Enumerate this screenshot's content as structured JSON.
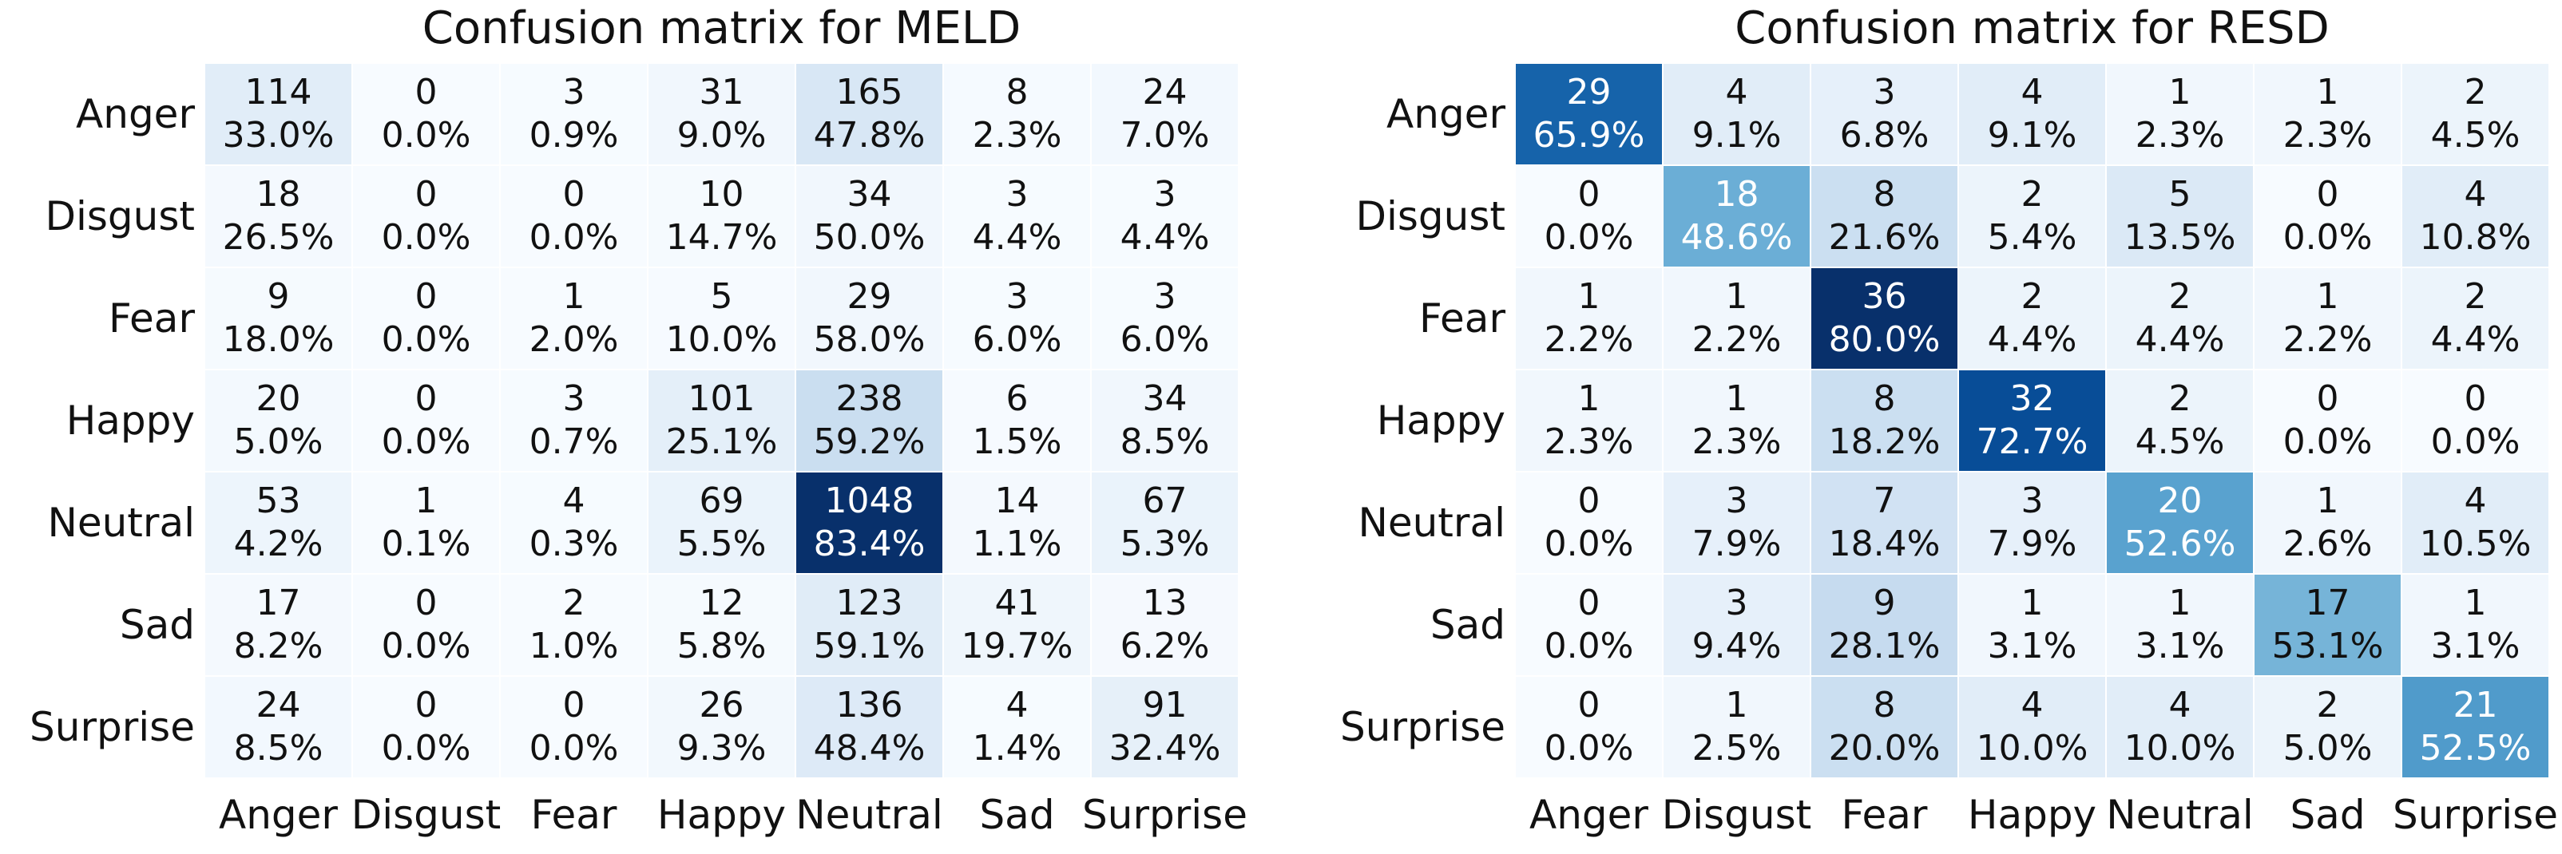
{
  "figure": {
    "background": "#ffffff",
    "colormap_name": "Blues",
    "text_dark": "#111111",
    "text_light": "#ffffff"
  },
  "chart_data": [
    {
      "type": "heatmap",
      "title": "Confusion matrix for MELD",
      "x_labels": [
        "Anger",
        "Disgust",
        "Fear",
        "Happy",
        "Neutral",
        "Sad",
        "Surprise"
      ],
      "y_labels": [
        "Anger",
        "Disgust",
        "Fear",
        "Happy",
        "Neutral",
        "Sad",
        "Surprise"
      ],
      "cell_counts": [
        [
          114,
          0,
          3,
          31,
          165,
          8,
          24
        ],
        [
          18,
          0,
          0,
          10,
          34,
          3,
          3
        ],
        [
          9,
          0,
          1,
          5,
          29,
          3,
          3
        ],
        [
          20,
          0,
          3,
          101,
          238,
          6,
          34
        ],
        [
          53,
          1,
          4,
          69,
          1048,
          14,
          67
        ],
        [
          17,
          0,
          2,
          12,
          123,
          41,
          13
        ],
        [
          24,
          0,
          0,
          26,
          136,
          4,
          91
        ]
      ],
      "cell_percents": [
        [
          "33.0%",
          "0.0%",
          "0.9%",
          "9.0%",
          "47.8%",
          "2.3%",
          "7.0%"
        ],
        [
          "26.5%",
          "0.0%",
          "0.0%",
          "14.7%",
          "50.0%",
          "4.4%",
          "4.4%"
        ],
        [
          "18.0%",
          "0.0%",
          "2.0%",
          "10.0%",
          "58.0%",
          "6.0%",
          "6.0%"
        ],
        [
          "5.0%",
          "0.0%",
          "0.7%",
          "25.1%",
          "59.2%",
          "1.5%",
          "8.5%"
        ],
        [
          "4.2%",
          "0.1%",
          "0.3%",
          "5.5%",
          "83.4%",
          "1.1%",
          "5.3%"
        ],
        [
          "8.2%",
          "0.0%",
          "1.0%",
          "5.8%",
          "59.1%",
          "19.7%",
          "6.2%"
        ],
        [
          "8.5%",
          "0.0%",
          "0.0%",
          "9.3%",
          "48.4%",
          "1.4%",
          "32.4%"
        ]
      ],
      "max_count": 1048,
      "legend": "none",
      "grid": "off"
    },
    {
      "type": "heatmap",
      "title": "Confusion matrix for RESD",
      "x_labels": [
        "Anger",
        "Disgust",
        "Fear",
        "Happy",
        "Neutral",
        "Sad",
        "Surprise"
      ],
      "y_labels": [
        "Anger",
        "Disgust",
        "Fear",
        "Happy",
        "Neutral",
        "Sad",
        "Surprise"
      ],
      "cell_counts": [
        [
          29,
          4,
          3,
          4,
          1,
          1,
          2
        ],
        [
          0,
          18,
          8,
          2,
          5,
          0,
          4
        ],
        [
          1,
          1,
          36,
          2,
          2,
          1,
          2
        ],
        [
          1,
          1,
          8,
          32,
          2,
          0,
          0
        ],
        [
          0,
          3,
          7,
          3,
          20,
          1,
          4
        ],
        [
          0,
          3,
          9,
          1,
          1,
          17,
          1
        ],
        [
          0,
          1,
          8,
          4,
          4,
          2,
          21
        ]
      ],
      "cell_percents": [
        [
          "65.9%",
          "9.1%",
          "6.8%",
          "9.1%",
          "2.3%",
          "2.3%",
          "4.5%"
        ],
        [
          "0.0%",
          "48.6%",
          "21.6%",
          "5.4%",
          "13.5%",
          "0.0%",
          "10.8%"
        ],
        [
          "2.2%",
          "2.2%",
          "80.0%",
          "4.4%",
          "4.4%",
          "2.2%",
          "4.4%"
        ],
        [
          "2.3%",
          "2.3%",
          "18.2%",
          "72.7%",
          "4.5%",
          "0.0%",
          "0.0%"
        ],
        [
          "0.0%",
          "7.9%",
          "18.4%",
          "7.9%",
          "52.6%",
          "2.6%",
          "10.5%"
        ],
        [
          "0.0%",
          "9.4%",
          "28.1%",
          "3.1%",
          "3.1%",
          "53.1%",
          "3.1%"
        ],
        [
          "0.0%",
          "2.5%",
          "20.0%",
          "10.0%",
          "10.0%",
          "5.0%",
          "52.5%"
        ]
      ],
      "max_count": 36,
      "legend": "none",
      "grid": "off"
    }
  ]
}
